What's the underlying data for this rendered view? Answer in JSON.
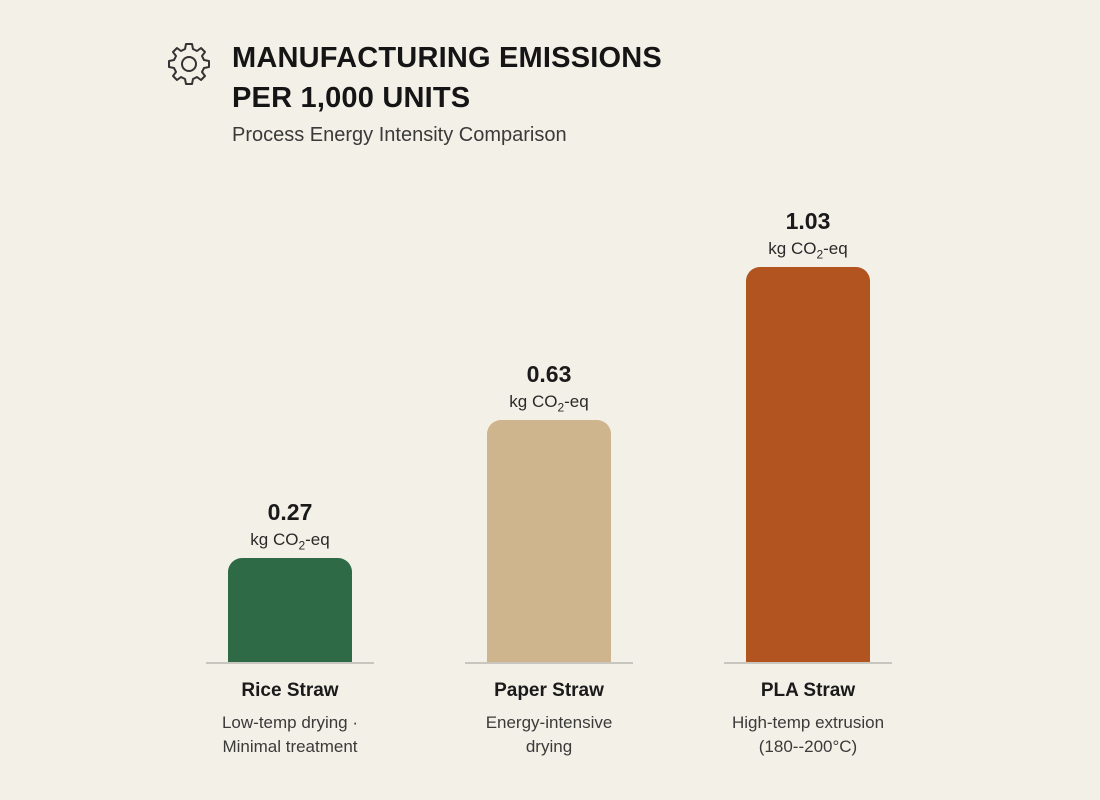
{
  "header": {
    "icon": "gear-icon",
    "title_line1": "MANUFACTURING EMISSIONS",
    "title_line2": "PER 1,000 UNITS",
    "subtitle": "Process Energy Intensity Comparison"
  },
  "chart_data": {
    "type": "bar",
    "title": "MANUFACTURING EMISSIONS PER 1,000 UNITS",
    "subtitle": "Process Energy Intensity Comparison",
    "categories": [
      "Rice Straw",
      "Paper Straw",
      "PLA Straw"
    ],
    "values": [
      0.27,
      0.63,
      1.03
    ],
    "unit_prefix": "kg CO",
    "unit_sub": "2",
    "unit_suffix": "-eq",
    "value_labels": [
      "0.27",
      "0.63",
      "1.03"
    ],
    "descriptions": [
      [
        "Low-temp drying ·",
        "Minimal treatment"
      ],
      [
        "Energy-intensive",
        "drying"
      ],
      [
        "High-temp extrusion",
        "(180--200°C)"
      ]
    ],
    "colors": [
      "#2e6a45",
      "#cfb58e",
      "#b1541f"
    ],
    "xlabel": "",
    "ylabel": "",
    "ylim": [
      0,
      1.03
    ],
    "grid": false,
    "legend": "none"
  }
}
